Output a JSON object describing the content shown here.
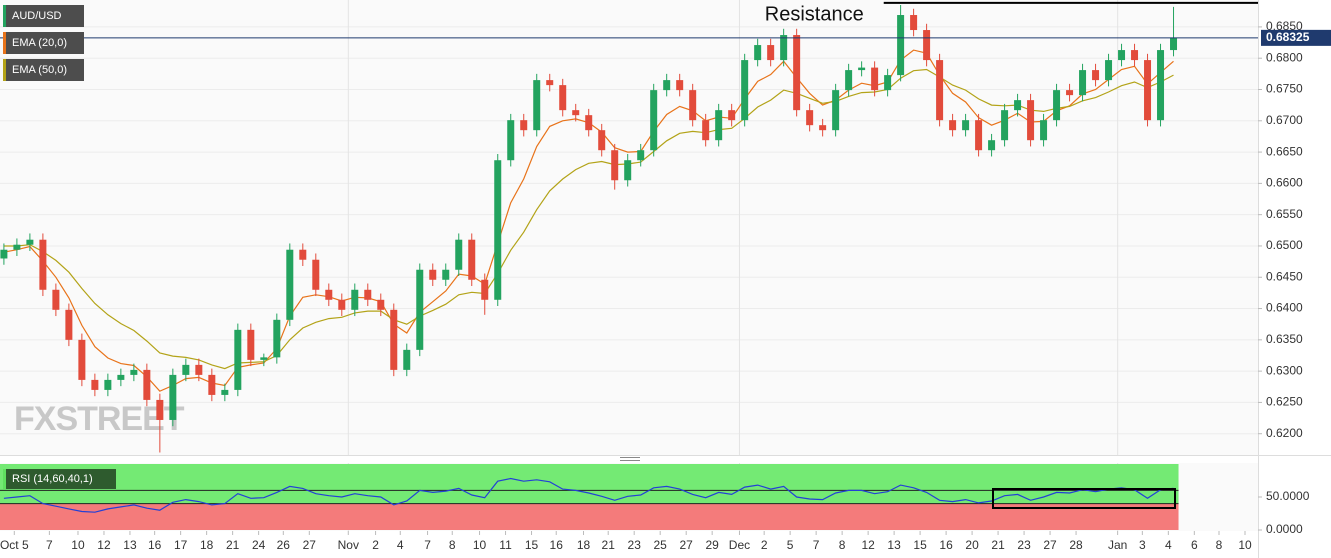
{
  "chart_data": [
    {
      "type": "candlestick",
      "x": [
        0,
        1,
        2,
        3,
        4,
        5,
        6,
        7,
        8,
        9,
        10,
        11,
        12,
        13,
        14,
        15,
        16,
        17,
        18,
        19,
        20,
        21,
        22,
        23,
        24,
        25,
        26,
        27,
        28,
        29,
        30,
        31,
        32,
        33,
        34,
        35,
        36,
        37,
        38,
        39,
        40,
        41,
        42,
        43,
        44,
        45,
        46,
        47,
        48,
        49,
        50,
        51,
        52,
        53,
        54,
        55,
        56,
        57,
        58,
        59,
        60,
        61,
        62,
        63,
        64,
        65,
        66,
        67,
        68,
        69,
        70,
        71,
        72,
        73,
        74,
        75,
        76,
        77,
        78,
        79,
        80,
        81,
        82,
        83,
        84,
        85,
        86,
        87,
        88,
        89,
        90
      ],
      "series": [
        {
          "name": "AUD/USD",
          "up_color": "#23a35f",
          "down_color": "#e24b3b",
          "open": [
            0.648,
            0.6494,
            0.6502,
            0.651,
            0.643,
            0.6398,
            0.635,
            0.6286,
            0.627,
            0.6286,
            0.6294,
            0.6302,
            0.6254,
            0.6222,
            0.6294,
            0.631,
            0.6294,
            0.6262,
            0.627,
            0.6366,
            0.6318,
            0.6322,
            0.6382,
            0.6494,
            0.6478,
            0.643,
            0.6414,
            0.6398,
            0.643,
            0.6414,
            0.6398,
            0.6302,
            0.6334,
            0.6462,
            0.6446,
            0.6462,
            0.651,
            0.6446,
            0.6414,
            0.6637,
            0.6701,
            0.6685,
            0.6765,
            0.6757,
            0.6717,
            0.6709,
            0.6685,
            0.6653,
            0.6605,
            0.6637,
            0.6653,
            0.6749,
            0.6765,
            0.6749,
            0.6701,
            0.6669,
            0.6717,
            0.6701,
            0.6797,
            0.6821,
            0.6797,
            0.6837,
            0.6717,
            0.6693,
            0.6685,
            0.6749,
            0.6781,
            0.6785,
            0.6749,
            0.6773,
            0.6869,
            0.6845,
            0.6797,
            0.6701,
            0.6685,
            0.6701,
            0.6653,
            0.6669,
            0.6717,
            0.6733,
            0.6669,
            0.6701,
            0.6749,
            0.6741,
            0.6781,
            0.6765,
            0.6797,
            0.6813,
            0.6797,
            0.6701,
            0.6813
          ],
          "high": [
            0.6504,
            0.6512,
            0.652,
            0.652,
            0.644,
            0.6408,
            0.636,
            0.6296,
            0.6296,
            0.6304,
            0.6312,
            0.6312,
            0.6264,
            0.6304,
            0.632,
            0.632,
            0.6304,
            0.628,
            0.6376,
            0.6376,
            0.6328,
            0.6392,
            0.6504,
            0.6504,
            0.6488,
            0.644,
            0.6424,
            0.644,
            0.644,
            0.6424,
            0.6408,
            0.6344,
            0.6472,
            0.6472,
            0.6472,
            0.652,
            0.652,
            0.6456,
            0.6647,
            0.6711,
            0.6711,
            0.6775,
            0.6775,
            0.6767,
            0.6727,
            0.6719,
            0.6695,
            0.6663,
            0.6647,
            0.6663,
            0.6759,
            0.6775,
            0.6775,
            0.6759,
            0.6711,
            0.6727,
            0.6727,
            0.6807,
            0.6831,
            0.6831,
            0.6847,
            0.6847,
            0.6727,
            0.6703,
            0.6759,
            0.6791,
            0.6795,
            0.6795,
            0.6783,
            0.6885,
            0.6879,
            0.6855,
            0.6807,
            0.6711,
            0.6711,
            0.6711,
            0.6679,
            0.6727,
            0.6743,
            0.6743,
            0.6711,
            0.6759,
            0.6759,
            0.6791,
            0.6791,
            0.6807,
            0.6823,
            0.6823,
            0.6807,
            0.6823,
            0.6882
          ],
          "low": [
            0.647,
            0.6484,
            0.6492,
            0.642,
            0.6388,
            0.634,
            0.6276,
            0.626,
            0.626,
            0.6276,
            0.6284,
            0.6244,
            0.617,
            0.6212,
            0.6284,
            0.6284,
            0.6252,
            0.6252,
            0.626,
            0.6308,
            0.6308,
            0.6312,
            0.6372,
            0.6468,
            0.642,
            0.6404,
            0.6388,
            0.6388,
            0.6404,
            0.6388,
            0.6292,
            0.6292,
            0.6324,
            0.6436,
            0.6436,
            0.6452,
            0.6436,
            0.639,
            0.6404,
            0.6627,
            0.6675,
            0.6675,
            0.6747,
            0.6707,
            0.6699,
            0.6675,
            0.6643,
            0.659,
            0.6595,
            0.6627,
            0.6643,
            0.6739,
            0.6739,
            0.6691,
            0.6659,
            0.6659,
            0.6691,
            0.6691,
            0.6787,
            0.6787,
            0.6787,
            0.6707,
            0.6683,
            0.6675,
            0.6675,
            0.6739,
            0.6771,
            0.6739,
            0.6739,
            0.6763,
            0.6835,
            0.6787,
            0.6691,
            0.6675,
            0.6675,
            0.6643,
            0.6643,
            0.6659,
            0.6707,
            0.6659,
            0.6659,
            0.6691,
            0.6731,
            0.6731,
            0.6755,
            0.6755,
            0.6787,
            0.6787,
            0.6691,
            0.6691,
            0.6803
          ],
          "close": [
            0.6494,
            0.6502,
            0.651,
            0.643,
            0.6398,
            0.635,
            0.6286,
            0.627,
            0.6286,
            0.6294,
            0.6302,
            0.6254,
            0.6222,
            0.6294,
            0.631,
            0.6294,
            0.6262,
            0.627,
            0.6366,
            0.6318,
            0.6322,
            0.6382,
            0.6494,
            0.6478,
            0.643,
            0.6414,
            0.6398,
            0.643,
            0.6414,
            0.6398,
            0.6302,
            0.6334,
            0.6462,
            0.6446,
            0.6462,
            0.651,
            0.6446,
            0.6414,
            0.6637,
            0.6701,
            0.6685,
            0.6765,
            0.6757,
            0.6717,
            0.6709,
            0.6685,
            0.6653,
            0.6605,
            0.6637,
            0.6653,
            0.6749,
            0.6765,
            0.6749,
            0.6701,
            0.6669,
            0.6717,
            0.6701,
            0.6797,
            0.6821,
            0.6797,
            0.6837,
            0.6717,
            0.6693,
            0.6685,
            0.6749,
            0.6781,
            0.6785,
            0.6749,
            0.6773,
            0.6869,
            0.6845,
            0.6797,
            0.6701,
            0.6685,
            0.6701,
            0.6653,
            0.6669,
            0.6717,
            0.6733,
            0.6669,
            0.6701,
            0.6749,
            0.6741,
            0.6781,
            0.6765,
            0.6797,
            0.6813,
            0.6797,
            0.6701,
            0.6813,
            0.6833
          ]
        },
        {
          "name": "EMA (20,0)",
          "type": "line",
          "color": "#e8731a",
          "values": [
            0.649,
            0.6494,
            0.6499,
            0.6476,
            0.645,
            0.6417,
            0.6373,
            0.6339,
            0.6321,
            0.6312,
            0.6309,
            0.6291,
            0.6268,
            0.6277,
            0.6288,
            0.629,
            0.6281,
            0.6277,
            0.6306,
            0.631,
            0.6313,
            0.6336,
            0.6388,
            0.6418,
            0.6422,
            0.6419,
            0.6412,
            0.6418,
            0.6417,
            0.6411,
            0.6375,
            0.6361,
            0.6394,
            0.6411,
            0.6428,
            0.6455,
            0.6452,
            0.6439,
            0.6504,
            0.6569,
            0.6607,
            0.6659,
            0.6691,
            0.67,
            0.6703,
            0.6697,
            0.6682,
            0.6657,
            0.665,
            0.6651,
            0.6683,
            0.671,
            0.6723,
            0.6716,
            0.67,
            0.6706,
            0.6704,
            0.6735,
            0.6763,
            0.6774,
            0.6795,
            0.6769,
            0.6744,
            0.6725,
            0.6733,
            0.6749,
            0.676,
            0.6756,
            0.6762,
            0.6797,
            0.6813,
            0.6808,
            0.6773,
            0.6744,
            0.673,
            0.6705,
            0.6693,
            0.6701,
            0.6712,
            0.6698,
            0.6699,
            0.6716,
            0.6724,
            0.6743,
            0.675,
            0.6766,
            0.6782,
            0.6787,
            0.6759,
            0.6777,
            0.6795
          ]
        },
        {
          "name": "EMA (50,0)",
          "type": "line",
          "color": "#b3a318",
          "values": [
            0.65,
            0.65,
            0.6502,
            0.6491,
            0.6477,
            0.6458,
            0.6432,
            0.6408,
            0.639,
            0.6376,
            0.6365,
            0.6348,
            0.6329,
            0.6324,
            0.6322,
            0.6318,
            0.631,
            0.6304,
            0.6313,
            0.6314,
            0.6315,
            0.6325,
            0.635,
            0.6369,
            0.6378,
            0.6384,
            0.6386,
            0.6393,
            0.6396,
            0.6396,
            0.6382,
            0.6375,
            0.6388,
            0.6397,
            0.6407,
            0.6422,
            0.6426,
            0.6424,
            0.6456,
            0.6493,
            0.6522,
            0.6558,
            0.6588,
            0.6607,
            0.6622,
            0.6632,
            0.6635,
            0.663,
            0.6631,
            0.6634,
            0.6651,
            0.6668,
            0.668,
            0.6683,
            0.6681,
            0.6686,
            0.6688,
            0.6704,
            0.6722,
            0.6733,
            0.6749,
            0.6744,
            0.6736,
            0.6728,
            0.6731,
            0.6739,
            0.6745,
            0.6746,
            0.675,
            0.6768,
            0.678,
            0.6782,
            0.677,
            0.6757,
            0.6749,
            0.6735,
            0.6725,
            0.6724,
            0.6725,
            0.6717,
            0.6715,
            0.672,
            0.6723,
            0.6732,
            0.6737,
            0.6746,
            0.6756,
            0.6762,
            0.6753,
            0.6762,
            0.6773
          ]
        }
      ],
      "xlim": [
        -0.3,
        96.5
      ],
      "xticks": [
        {
          "value": 0.8,
          "label": "Oct 5"
        },
        {
          "value": 3.5,
          "label": "7"
        },
        {
          "value": 5.7,
          "label": "10"
        },
        {
          "value": 7.7,
          "label": "12"
        },
        {
          "value": 9.7,
          "label": "13"
        },
        {
          "value": 11.6,
          "label": "16"
        },
        {
          "value": 13.6,
          "label": "17"
        },
        {
          "value": 15.6,
          "label": "18"
        },
        {
          "value": 17.6,
          "label": "21"
        },
        {
          "value": 19.6,
          "label": "24"
        },
        {
          "value": 21.5,
          "label": "26"
        },
        {
          "value": 23.5,
          "label": "27"
        },
        {
          "value": 26.5,
          "label": "Nov"
        },
        {
          "value": 28.6,
          "label": "2"
        },
        {
          "value": 30.5,
          "label": "4"
        },
        {
          "value": 32.6,
          "label": "7"
        },
        {
          "value": 34.5,
          "label": "8"
        },
        {
          "value": 36.6,
          "label": "10"
        },
        {
          "value": 38.6,
          "label": "11"
        },
        {
          "value": 40.6,
          "label": "15"
        },
        {
          "value": 42.5,
          "label": "16"
        },
        {
          "value": 44.6,
          "label": "18"
        },
        {
          "value": 46.5,
          "label": "21"
        },
        {
          "value": 48.5,
          "label": "23"
        },
        {
          "value": 50.5,
          "label": "25"
        },
        {
          "value": 52.5,
          "label": "27"
        },
        {
          "value": 54.5,
          "label": "29"
        },
        {
          "value": 56.6,
          "label": "Dec"
        },
        {
          "value": 58.5,
          "label": "2"
        },
        {
          "value": 60.5,
          "label": "5"
        },
        {
          "value": 62.5,
          "label": "7"
        },
        {
          "value": 64.5,
          "label": "8"
        },
        {
          "value": 66.5,
          "label": "12"
        },
        {
          "value": 68.5,
          "label": "13"
        },
        {
          "value": 70.5,
          "label": "15"
        },
        {
          "value": 72.5,
          "label": "16"
        },
        {
          "value": 74.5,
          "label": "20"
        },
        {
          "value": 76.5,
          "label": "21"
        },
        {
          "value": 78.5,
          "label": "23"
        },
        {
          "value": 80.5,
          "label": "27"
        },
        {
          "value": 82.5,
          "label": "28"
        },
        {
          "value": 85.7,
          "label": "Jan"
        },
        {
          "value": 87.6,
          "label": "3"
        },
        {
          "value": 89.6,
          "label": "4"
        },
        {
          "value": 91.6,
          "label": "6"
        },
        {
          "value": 93.5,
          "label": "8"
        },
        {
          "value": 95.5,
          "label": "10"
        }
      ],
      "ylim": [
        0.6166,
        0.6893
      ],
      "yticks": [
        {
          "value": 0.62,
          "label": "0.6200"
        },
        {
          "value": 0.625,
          "label": "0.6250"
        },
        {
          "value": 0.63,
          "label": "0.6300"
        },
        {
          "value": 0.635,
          "label": "0.6350"
        },
        {
          "value": 0.64,
          "label": "0.6400"
        },
        {
          "value": 0.645,
          "label": "0.6450"
        },
        {
          "value": 0.65,
          "label": "0.6500"
        },
        {
          "value": 0.655,
          "label": "0.6550"
        },
        {
          "value": 0.66,
          "label": "0.6600"
        },
        {
          "value": 0.665,
          "label": "0.6650"
        },
        {
          "value": 0.67,
          "label": "0.6700"
        },
        {
          "value": 0.675,
          "label": "0.6750"
        },
        {
          "value": 0.68,
          "label": "0.6800"
        },
        {
          "value": 0.685,
          "label": "0.6850"
        }
      ],
      "grid": true,
      "last_price": {
        "value": 0.68325,
        "label": "0.68325",
        "color": "#1f3a6e"
      },
      "annotations": [
        {
          "text": "Resistance",
          "value": 0.689,
          "x": 67.7
        }
      ],
      "watermark": "FXSTREET"
    },
    {
      "type": "line",
      "series": [
        {
          "name": "RSI (14,60,40,1)",
          "color": "#2340d6",
          "values": [
            48,
            50,
            52,
            40,
            36,
            32,
            28,
            27,
            32,
            35,
            38,
            33,
            30,
            42,
            46,
            43,
            38,
            40,
            55,
            48,
            49,
            57,
            66,
            63,
            55,
            52,
            50,
            55,
            52,
            50,
            38,
            44,
            60,
            57,
            59,
            63,
            53,
            49,
            74,
            78,
            74,
            76,
            73,
            62,
            60,
            56,
            51,
            45,
            51,
            53,
            64,
            66,
            62,
            54,
            49,
            57,
            54,
            65,
            68,
            62,
            66,
            50,
            47,
            46,
            56,
            60,
            60,
            55,
            58,
            68,
            64,
            57,
            45,
            43,
            46,
            41,
            44,
            52,
            54,
            45,
            50,
            57,
            56,
            61,
            58,
            62,
            64,
            61,
            48,
            61,
            63
          ]
        }
      ],
      "ylim": [
        0,
        100
      ],
      "yticks": [
        {
          "value": 0,
          "label": "0.0000"
        },
        {
          "value": 50,
          "label": "50.0000"
        }
      ],
      "bands": [
        {
          "from": 40,
          "to": 100,
          "color": "#74ea74"
        },
        {
          "from": 0,
          "to": 40,
          "color": "#f47b7b"
        }
      ],
      "levels": [
        60,
        40
      ]
    }
  ]
}
